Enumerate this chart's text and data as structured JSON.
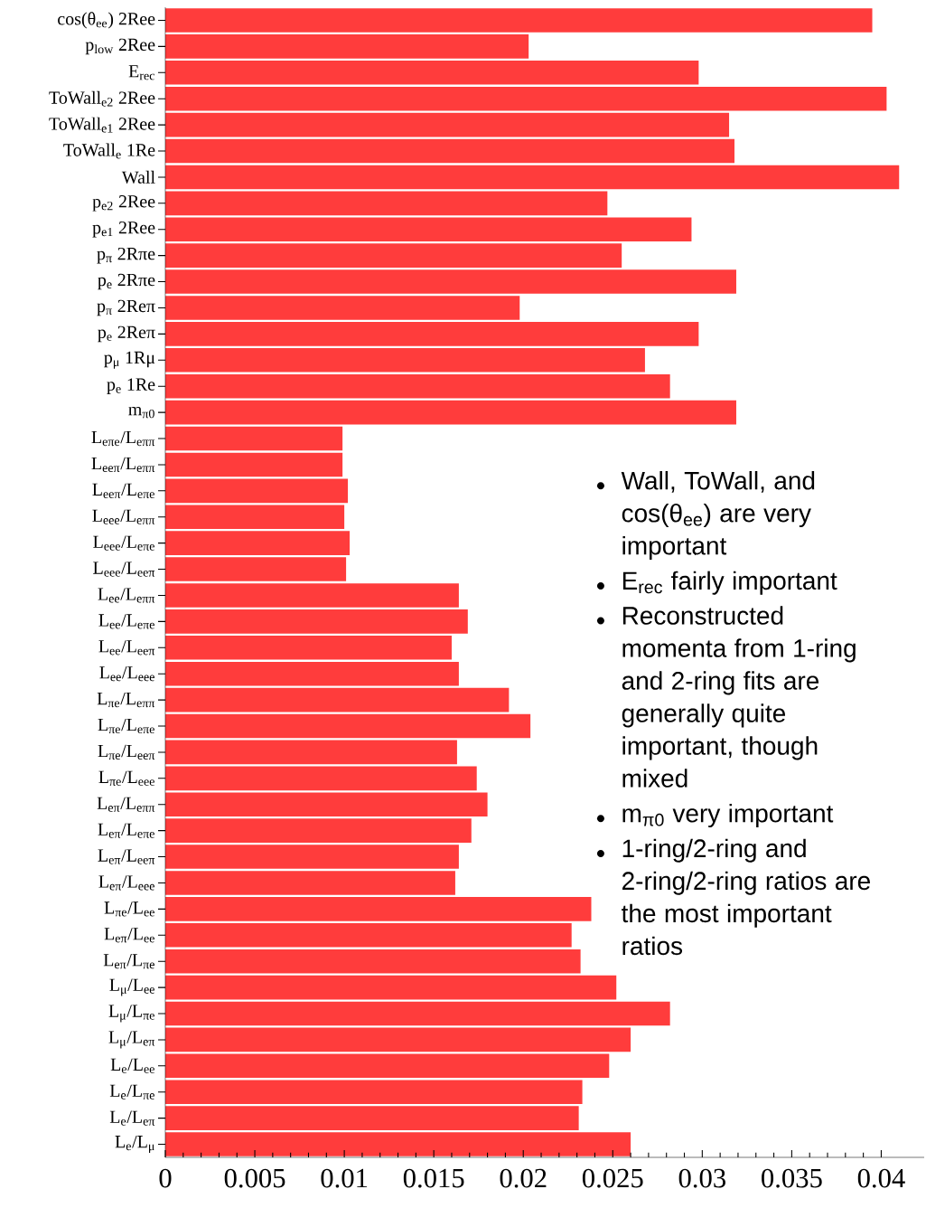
{
  "chart_data": {
    "type": "bar",
    "orientation": "horizontal",
    "color": "#ff3c3c",
    "categories": [
      "cos(θ$_{ee}$) 2Ree",
      "p$_{low}$ 2Ree",
      "E$_{rec}$",
      "ToWall$_{e2}$ 2Ree",
      "ToWall$_{e1}$ 2Ree",
      "ToWall$_{e}$ 1Re",
      "Wall",
      "p$_{e2}$ 2Ree",
      "p$_{e1}$ 2Ree",
      "p$_{π}$ 2Rπe",
      "p$_{e}$ 2Rπe",
      "p$_{π}$ 2Reπ",
      "p$_{e}$ 2Reπ",
      "p$_{μ}$ 1Rμ",
      "p$_{e}$ 1Re",
      "m$_{π0}$",
      "L$_{eπe}$/L$_{eππ}$",
      "L$_{eeπ}$/L$_{eππ}$",
      "L$_{eeπ}$/L$_{eπe}$",
      "L$_{eee}$/L$_{eππ}$",
      "L$_{eee}$/L$_{eπe}$",
      "L$_{eee}$/L$_{eeπ}$",
      "L$_{ee}$/L$_{eππ}$",
      "L$_{ee}$/L$_{eπe}$",
      "L$_{ee}$/L$_{eeπ}$",
      "L$_{ee}$/L$_{eee}$",
      "L$_{πe}$/L$_{eππ}$",
      "L$_{πe}$/L$_{eπe}$",
      "L$_{πe}$/L$_{eeπ}$",
      "L$_{πe}$/L$_{eee}$",
      "L$_{eπ}$/L$_{eππ}$",
      "L$_{eπ}$/L$_{eπe}$",
      "L$_{eπ}$/L$_{eeπ}$",
      "L$_{eπ}$/L$_{eee}$",
      "L$_{πe}$/L$_{ee}$",
      "L$_{eπ}$/L$_{ee}$",
      "L$_{eπ}$/L$_{πe}$",
      "L$_{μ}$/L$_{ee}$",
      "L$_{μ}$/L$_{πe}$",
      "L$_{μ}$/L$_{eπ}$",
      "L$_{e}$/L$_{ee}$",
      "L$_{e}$/L$_{πe}$",
      "L$_{e}$/L$_{eπ}$",
      "L$_{e}$/L$_{μ}$"
    ],
    "values": [
      0.0395,
      0.0203,
      0.0298,
      0.0403,
      0.0315,
      0.0318,
      0.041,
      0.0247,
      0.0294,
      0.0255,
      0.0319,
      0.0198,
      0.0298,
      0.0268,
      0.0282,
      0.0319,
      0.0099,
      0.0099,
      0.0102,
      0.01,
      0.0103,
      0.0101,
      0.0164,
      0.0169,
      0.016,
      0.0164,
      0.0192,
      0.0204,
      0.0163,
      0.0174,
      0.018,
      0.0171,
      0.0164,
      0.0162,
      0.0238,
      0.0227,
      0.0232,
      0.0252,
      0.0282,
      0.026,
      0.0248,
      0.0233,
      0.0231,
      0.026
    ],
    "xlim": [
      0,
      0.0424
    ],
    "xticks": [
      0,
      0.005,
      0.01,
      0.015,
      0.02,
      0.025,
      0.03,
      0.035,
      0.04
    ],
    "annotations": [
      "Wall, ToWall, and cos(θ$_{ee}$) are very important",
      "E$_{rec}$ fairly important",
      "Reconstructed momenta from 1-ring and 2-ring fits are generally quite important, though mixed",
      "m$_{π0}$ very important",
      "1-ring/2-ring and 2-ring/2-ring ratios are the most important ratios"
    ]
  }
}
